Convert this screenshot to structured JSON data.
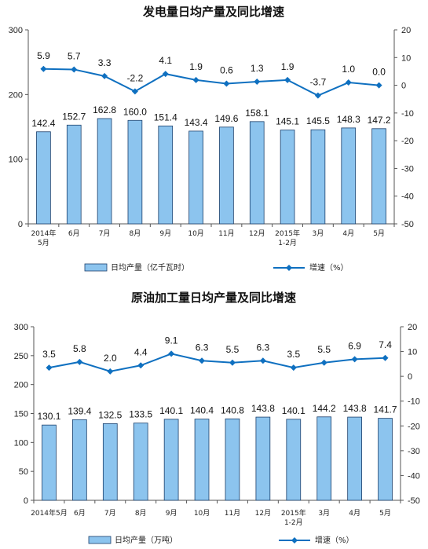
{
  "colors": {
    "bar_fill": "#8cc4ee",
    "bar_stroke": "#1b3f6b",
    "line": "#0f70c0",
    "axis": "#555555"
  },
  "chart_data": [
    {
      "type": "bar",
      "title": "发电量日均产量及同比增速",
      "categories": [
        "2014年\n5月",
        "6月",
        "7月",
        "8月",
        "9月",
        "10月",
        "11月",
        "12月",
        "2015年\n1-2月",
        "3月",
        "4月",
        "5月"
      ],
      "series": [
        {
          "name": "日均产量（亿千瓦时）",
          "type": "bar",
          "axis": "left",
          "values": [
            142.4,
            152.7,
            162.8,
            160.0,
            151.4,
            143.4,
            149.6,
            158.1,
            145.1,
            145.5,
            148.3,
            147.2
          ],
          "labels": [
            "142.4",
            "152.7",
            "162.8",
            "160.0",
            "151.4",
            "143.4",
            "149.6",
            "158.1",
            "145.1",
            "145.5",
            "148.3",
            "147.2"
          ]
        },
        {
          "name": "增速（%）",
          "type": "line",
          "axis": "right",
          "values": [
            5.9,
            5.7,
            3.3,
            -2.2,
            4.1,
            1.9,
            0.6,
            1.3,
            1.9,
            -3.7,
            1.0,
            0.0
          ],
          "labels": [
            "5.9",
            "5.7",
            "3.3",
            "-2.2",
            "4.1",
            "1.9",
            "0.6",
            "1.3",
            "1.9",
            "-3.7",
            "1.0",
            "0.0"
          ]
        }
      ],
      "ylim_left": [
        0,
        300
      ],
      "yticks_left": [
        "0",
        "100",
        "200",
        "300"
      ],
      "ylim_right": [
        -50,
        20
      ],
      "yticks_right": [
        "-50",
        "-40",
        "-30",
        "-20",
        "-10",
        "0",
        "10",
        "20"
      ],
      "grid": false,
      "legend_position": "bottom"
    },
    {
      "type": "bar",
      "title": "原油加工量日均产量及同比增速",
      "categories": [
        "2014年5月",
        "6月",
        "7月",
        "8月",
        "9月",
        "10月",
        "11月",
        "12月",
        "2015年\n1-2月",
        "3月",
        "4月",
        "5月"
      ],
      "series": [
        {
          "name": "日均产量（万吨）",
          "type": "bar",
          "axis": "left",
          "values": [
            130.1,
            139.4,
            132.5,
            133.5,
            140.1,
            140.4,
            140.8,
            143.8,
            140.1,
            144.2,
            143.8,
            141.7
          ],
          "labels": [
            "130.1",
            "139.4",
            "132.5",
            "133.5",
            "140.1",
            "140.4",
            "140.8",
            "143.8",
            "140.1",
            "144.2",
            "143.8",
            "141.7"
          ]
        },
        {
          "name": "增速（%）",
          "type": "line",
          "axis": "right",
          "values": [
            3.5,
            5.8,
            2.0,
            4.4,
            9.1,
            6.3,
            5.5,
            6.3,
            3.5,
            5.5,
            6.9,
            7.4
          ],
          "labels": [
            "3.5",
            "5.8",
            "2.0",
            "4.4",
            "9.1",
            "6.3",
            "5.5",
            "6.3",
            "3.5",
            "5.5",
            "6.9",
            "7.4"
          ]
        }
      ],
      "ylim_left": [
        0,
        300
      ],
      "yticks_left": [
        "0",
        "50",
        "100",
        "150",
        "200",
        "250",
        "300"
      ],
      "ylim_right": [
        -50,
        20
      ],
      "yticks_right": [
        "-50",
        "-40",
        "-30",
        "-20",
        "-10",
        "0",
        "10",
        "20"
      ],
      "grid": false,
      "legend_position": "bottom"
    }
  ]
}
